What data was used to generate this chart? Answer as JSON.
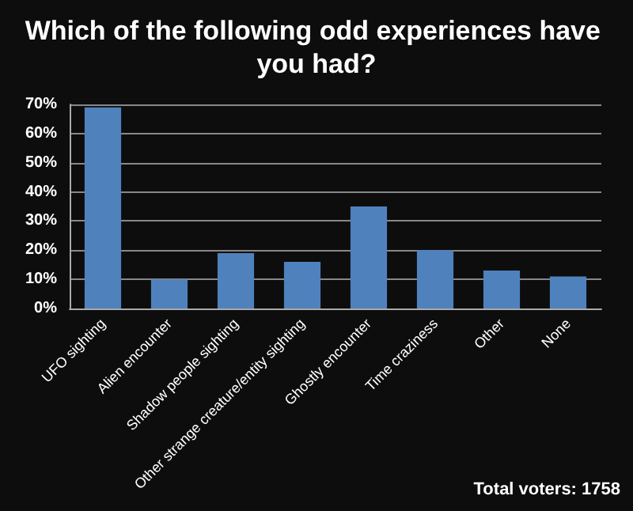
{
  "chart_data": {
    "type": "bar",
    "title": "Which of the following odd experiences have you had?",
    "categories": [
      "UFO sighting",
      "Alien encounter",
      "Shadow people sighting",
      "Other strange creature/entity sighting",
      "Ghostly encounter",
      "Time craziness",
      "Other",
      "None"
    ],
    "values": [
      69,
      10,
      19,
      16,
      35,
      20,
      13,
      11
    ],
    "color": "#4f81bd",
    "ylim": [
      0,
      70
    ],
    "yticks": [
      {
        "value": 0,
        "label": "0%"
      },
      {
        "value": 10,
        "label": "10%"
      },
      {
        "value": 20,
        "label": "20%"
      },
      {
        "value": 30,
        "label": "30%"
      },
      {
        "value": 40,
        "label": "40%"
      },
      {
        "value": 50,
        "label": "50%"
      },
      {
        "value": 60,
        "label": "60%"
      },
      {
        "value": 70,
        "label": "70%"
      }
    ],
    "grid": "y",
    "annotations": [
      "Total voters: 1758"
    ]
  }
}
